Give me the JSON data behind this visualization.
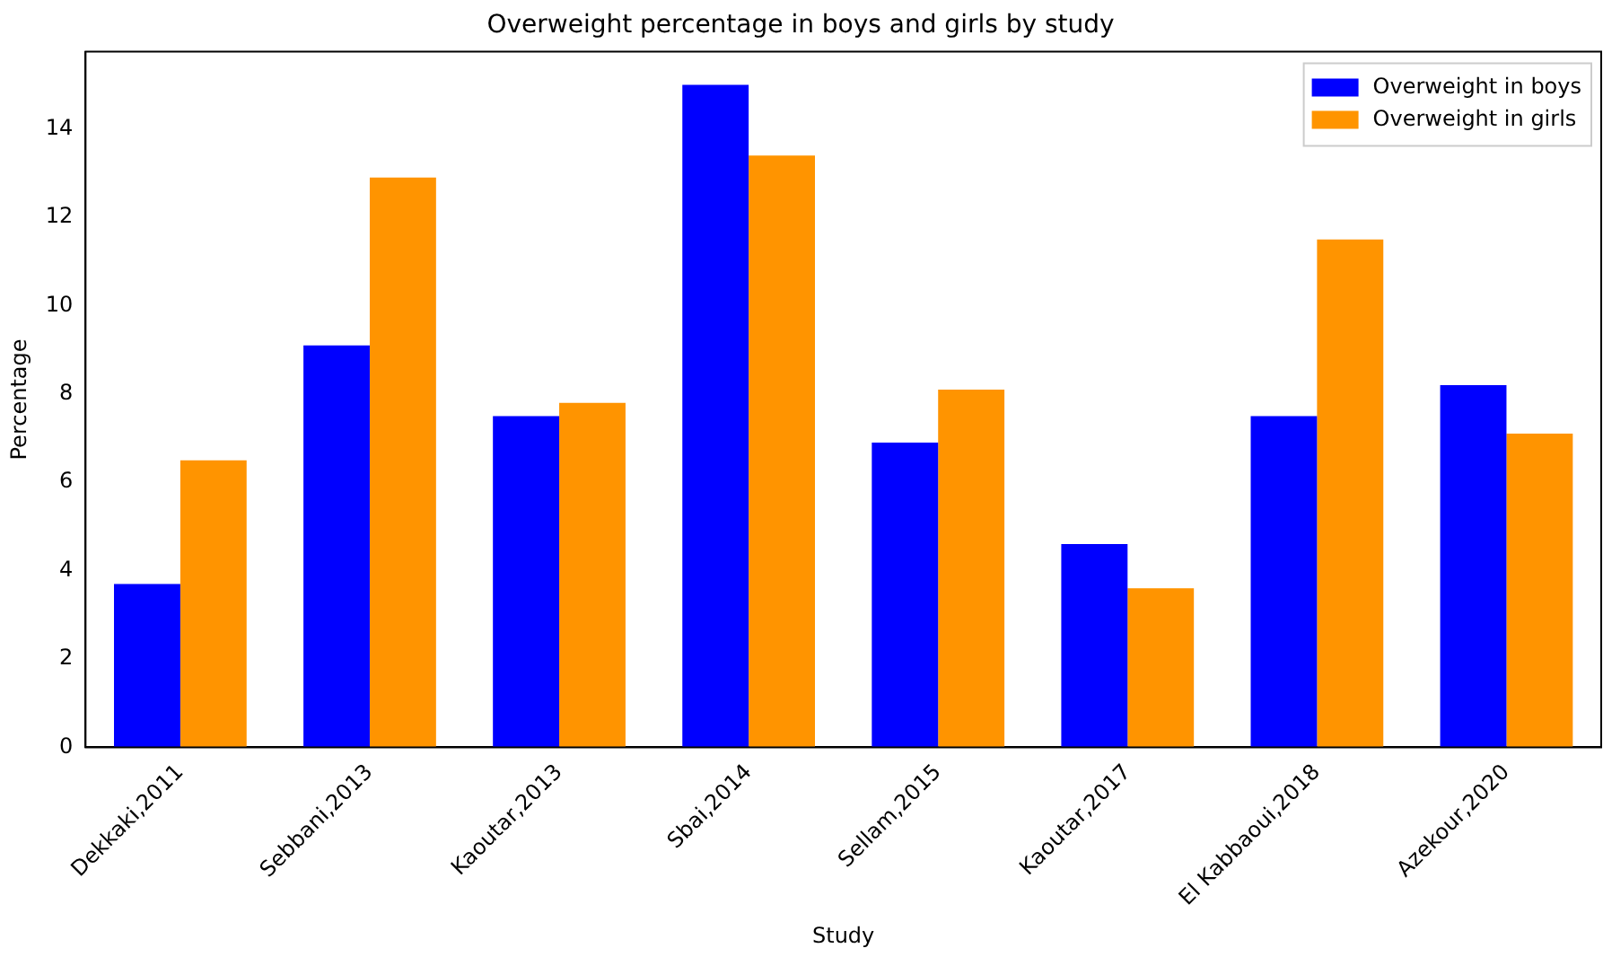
{
  "chart_data": {
    "type": "bar",
    "title": "Overweight percentage in boys and girls by study",
    "xlabel": "Study",
    "ylabel": "Percentage",
    "categories": [
      "Dekkaki,2011",
      "Sebbani,2013",
      "Kaoutar,2013",
      "Sbai,2014",
      "Sellam,2015",
      "Kaoutar,2017",
      "El Kabbaoui,2018",
      "Azekour,2020"
    ],
    "series": [
      {
        "name": "Overweight in boys",
        "color": "#0000ff",
        "values": [
          3.7,
          9.1,
          7.5,
          15.0,
          6.9,
          4.6,
          7.5,
          8.2
        ]
      },
      {
        "name": "Overweight in girls",
        "color": "#ff9400",
        "values": [
          6.5,
          12.9,
          7.8,
          13.4,
          8.1,
          3.6,
          11.5,
          7.1
        ]
      }
    ],
    "ylim": [
      0,
      15.75
    ],
    "yticks": [
      0,
      2,
      4,
      6,
      8,
      10,
      12,
      14
    ],
    "grid": false,
    "legend": "top right"
  }
}
